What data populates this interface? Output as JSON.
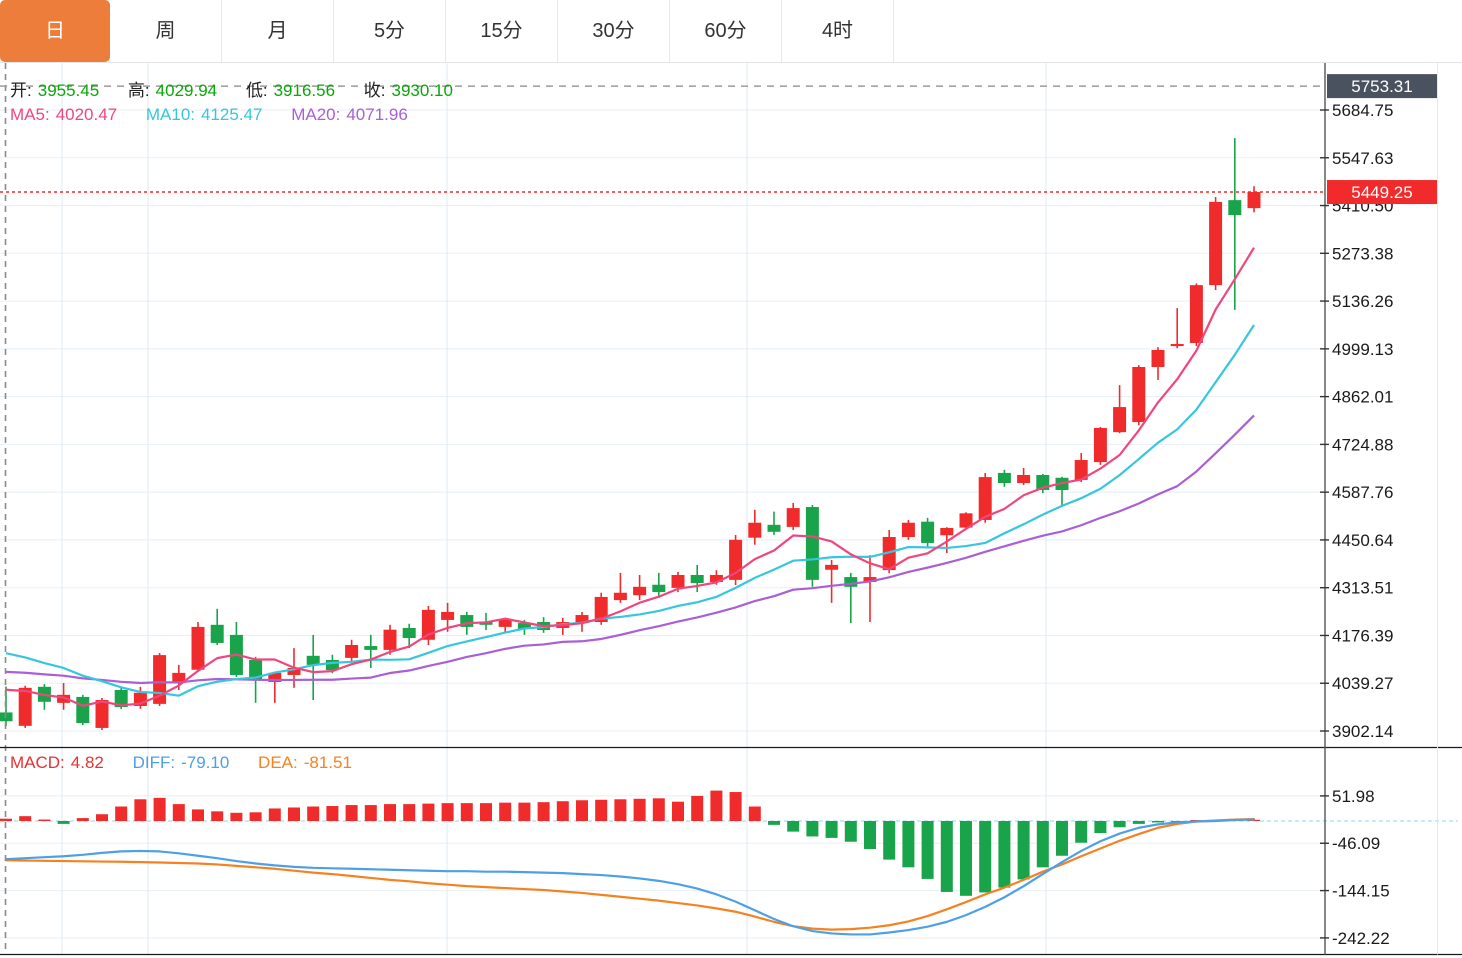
{
  "tabs": [
    {
      "label": "日",
      "active": true
    },
    {
      "label": "周",
      "active": false
    },
    {
      "label": "月",
      "active": false
    },
    {
      "label": "5分",
      "active": false
    },
    {
      "label": "15分",
      "active": false
    },
    {
      "label": "30分",
      "active": false
    },
    {
      "label": "60分",
      "active": false
    },
    {
      "label": "4时",
      "active": false
    }
  ],
  "info_bar": {
    "open_label": "开:",
    "open_value": "3955.45",
    "high_label": "高:",
    "high_value": "4029.94",
    "low_label": "低:",
    "low_value": "3916.56",
    "close_label": "收:",
    "close_value": "3930.10"
  },
  "ma_bar": {
    "ma5_label": "MA5:",
    "ma5_value": "4020.47",
    "ma10_label": "MA10:",
    "ma10_value": "4125.47",
    "ma20_label": "MA20:",
    "ma20_value": "4071.96"
  },
  "macd_bar": {
    "macd_label": "MACD:",
    "macd_value": "4.82",
    "diff_label": "DIFF:",
    "diff_value": "-79.10",
    "dea_label": "DEA:",
    "dea_value": "-81.51"
  },
  "y_axis": {
    "price_ticks": [
      "5684.75",
      "5547.63",
      "5410.50",
      "5273.38",
      "5136.26",
      "4999.13",
      "4862.01",
      "4724.88",
      "4587.76",
      "4450.64",
      "4313.51",
      "4176.39",
      "4039.27",
      "3902.14"
    ],
    "macd_ticks": [
      "51.98",
      "-46.09",
      "-144.15",
      "-242.22"
    ],
    "upper_badge": "5753.31",
    "price_badge": "5449.25"
  },
  "chart_data": {
    "type": "candlestick",
    "title": "",
    "price_axis": {
      "top_tick": 5684.75,
      "bottom_tick": 3902.14,
      "tick_step": 137.12,
      "crosshair_price": 5753.31,
      "last_price": 5449.25
    },
    "candles": [
      [
        3955.45,
        4029.94,
        3916.56,
        3930.1
      ],
      [
        3917,
        4032,
        3911,
        4026
      ],
      [
        4029,
        4037,
        3963,
        3986
      ],
      [
        3983,
        4040,
        3963,
        4006
      ],
      [
        4000,
        4006,
        3919,
        3925
      ],
      [
        3911,
        3997,
        3905,
        3991
      ],
      [
        4020,
        4026,
        3965,
        3971
      ],
      [
        3974,
        4029,
        3966,
        4012
      ],
      [
        3980,
        4126,
        3974,
        4120
      ],
      [
        4040,
        4092,
        4020,
        4069
      ],
      [
        4078,
        4215,
        4072,
        4201
      ],
      [
        4207,
        4253,
        4149,
        4155
      ],
      [
        4178,
        4215,
        4057,
        4063
      ],
      [
        4106,
        4115,
        3983,
        4049
      ],
      [
        4043,
        4072,
        3983,
        4069
      ],
      [
        4063,
        4140,
        4026,
        4083
      ],
      [
        4118,
        4178,
        3991,
        4092
      ],
      [
        4106,
        4121,
        4068,
        4077
      ],
      [
        4112,
        4164,
        4100,
        4149
      ],
      [
        4146,
        4178,
        4083,
        4135
      ],
      [
        4135,
        4207,
        4121,
        4193
      ],
      [
        4198,
        4210,
        4140,
        4169
      ],
      [
        4164,
        4261,
        4149,
        4250
      ],
      [
        4221,
        4270,
        4187,
        4244
      ],
      [
        4235,
        4244,
        4178,
        4201
      ],
      [
        4215,
        4241,
        4192,
        4207
      ],
      [
        4201,
        4227,
        4184,
        4221
      ],
      [
        4212,
        4221,
        4178,
        4195
      ],
      [
        4215,
        4229,
        4184,
        4192
      ],
      [
        4198,
        4227,
        4178,
        4215
      ],
      [
        4212,
        4244,
        4187,
        4235
      ],
      [
        4215,
        4299,
        4207,
        4287
      ],
      [
        4278,
        4356,
        4270,
        4299
      ],
      [
        4292,
        4350,
        4278,
        4316
      ],
      [
        4322,
        4356,
        4284,
        4301
      ],
      [
        4313,
        4359,
        4301,
        4350
      ],
      [
        4350,
        4379,
        4301,
        4327
      ],
      [
        4330,
        4364,
        4322,
        4350
      ],
      [
        4336,
        4465,
        4321,
        4451
      ],
      [
        4457,
        4537,
        4437,
        4500
      ],
      [
        4494,
        4532,
        4465,
        4474
      ],
      [
        4488,
        4557,
        4479,
        4542
      ],
      [
        4545,
        4551,
        4316,
        4336
      ],
      [
        4365,
        4393,
        4270,
        4379
      ],
      [
        4344,
        4356,
        4212,
        4316
      ],
      [
        4330,
        4407,
        4215,
        4344
      ],
      [
        4364,
        4479,
        4355,
        4459
      ],
      [
        4459,
        4508,
        4451,
        4500
      ],
      [
        4503,
        4514,
        4431,
        4442
      ],
      [
        4464,
        4487,
        4413,
        4485
      ],
      [
        4486,
        4530,
        4479,
        4527
      ],
      [
        4508,
        4643,
        4500,
        4631
      ],
      [
        4643,
        4652,
        4603,
        4614
      ],
      [
        4614,
        4657,
        4608,
        4637
      ],
      [
        4637,
        4640,
        4585,
        4594
      ],
      [
        4629,
        4632,
        4545,
        4594
      ],
      [
        4623,
        4700,
        4617,
        4680
      ],
      [
        4674,
        4775,
        4666,
        4772
      ],
      [
        4760,
        4895,
        4757,
        4832
      ],
      [
        4789,
        4952,
        4780,
        4947
      ],
      [
        4947,
        5004,
        4910,
        4996
      ],
      [
        5007,
        5116,
        5001,
        5013
      ],
      [
        5016,
        5187,
        5007,
        5182
      ],
      [
        5182,
        5435,
        5168,
        5421
      ],
      [
        5426,
        5604,
        5111,
        5383
      ],
      [
        5403,
        5466,
        5391,
        5449.25
      ]
    ],
    "ma": {
      "ma5_start": 4020.47,
      "ma10_start": 4125.47,
      "ma20_start": 4071.96
    },
    "macd": {
      "axis_ticks": [
        51.98,
        -46.09,
        -144.15,
        -242.22
      ],
      "histogram": [
        4.8,
        10,
        3,
        -6,
        6,
        14,
        30,
        45,
        48,
        35,
        24,
        20,
        17,
        18,
        26,
        28,
        30,
        31,
        33,
        33,
        35,
        35,
        36,
        37,
        37,
        37,
        38,
        38,
        39,
        41,
        43,
        44,
        45,
        46,
        47,
        40,
        52,
        63,
        60,
        30,
        -8,
        -22,
        -32,
        -35,
        -43,
        -58,
        -80,
        -96,
        -120,
        -147,
        -155,
        -148,
        -138,
        -121,
        -96,
        -72,
        -45,
        -25,
        -13,
        -6,
        -3,
        -1.5,
        1,
        1.5,
        2,
        2.5
      ],
      "diff": [
        -79.1,
        -77,
        -75,
        -73,
        -70,
        -66,
        -63,
        -62,
        -63,
        -67,
        -72,
        -77,
        -83,
        -88,
        -92,
        -95,
        -97,
        -98,
        -99,
        -100,
        -101,
        -102,
        -103,
        -104,
        -104,
        -105,
        -105,
        -106,
        -107,
        -108,
        -110,
        -112,
        -115,
        -119,
        -124,
        -131,
        -140,
        -152,
        -167,
        -185,
        -203,
        -218,
        -228,
        -233,
        -235,
        -235,
        -231,
        -226,
        -219,
        -209,
        -195,
        -178,
        -158,
        -135,
        -110,
        -85,
        -62,
        -42,
        -26,
        -14,
        -7,
        -3,
        -1,
        0,
        2,
        3
      ],
      "dea": [
        -81.5,
        -82,
        -82.5,
        -83,
        -83.5,
        -84,
        -84.5,
        -85.2,
        -86,
        -87,
        -88,
        -90,
        -93,
        -96,
        -99,
        -103,
        -107,
        -110,
        -114,
        -118,
        -122,
        -125,
        -129,
        -132,
        -135,
        -137,
        -139,
        -141,
        -143,
        -146,
        -149,
        -153,
        -157,
        -161,
        -165,
        -170,
        -175,
        -181,
        -188,
        -198,
        -209,
        -218,
        -223,
        -225,
        -224,
        -221,
        -216,
        -208,
        -197,
        -183,
        -168,
        -152,
        -138,
        -122,
        -105,
        -90,
        -73,
        -57,
        -41,
        -27,
        -14,
        -6,
        -1,
        1,
        3,
        4
      ]
    }
  },
  "colors": {
    "accent_orange": "#ed7d3a",
    "up_red": "#f02b2b",
    "down_green": "#19a44b",
    "ma5_pink": "#f0467e",
    "ma10_cyan": "#36c6de",
    "ma20_purple": "#a95fd5",
    "diff_blue": "#4da0e8",
    "dea_orange": "#f58220",
    "value_green": "#07a807",
    "badge_dark": "#49525e",
    "badge_red": "#f12b2b",
    "grid": "#e7eff6",
    "axis_text": "#1a1a1a"
  }
}
